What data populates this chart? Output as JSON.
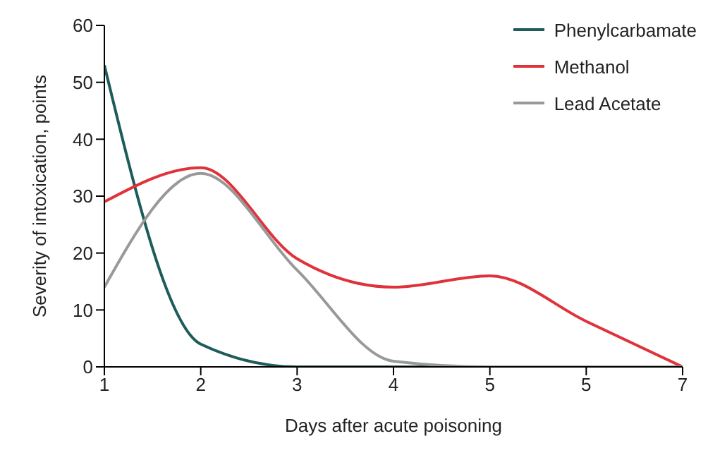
{
  "chart_data": {
    "type": "line",
    "xlabel": "Days after acute poisoning",
    "ylabel": "Severity of intoxication, points",
    "categories": [
      "1",
      "2",
      "3",
      "4",
      "5",
      "5",
      "7"
    ],
    "series": [
      {
        "name": "Phenylcarbamate",
        "color": "#1d5c5a",
        "values": [
          53,
          4,
          0,
          0,
          0,
          0,
          0
        ]
      },
      {
        "name": "Methanol",
        "color": "#e0323a",
        "values": [
          29,
          35,
          19,
          14,
          16,
          8,
          0
        ]
      },
      {
        "name": "Lead Acetate",
        "color": "#999999",
        "values": [
          14,
          34,
          17,
          1,
          0,
          0,
          0
        ]
      }
    ],
    "ylim": [
      0,
      60
    ],
    "yticks": [
      0,
      10,
      20,
      30,
      40,
      50,
      60
    ],
    "grid": false,
    "legend": "top right",
    "marker": "none",
    "line_style": "solid"
  }
}
